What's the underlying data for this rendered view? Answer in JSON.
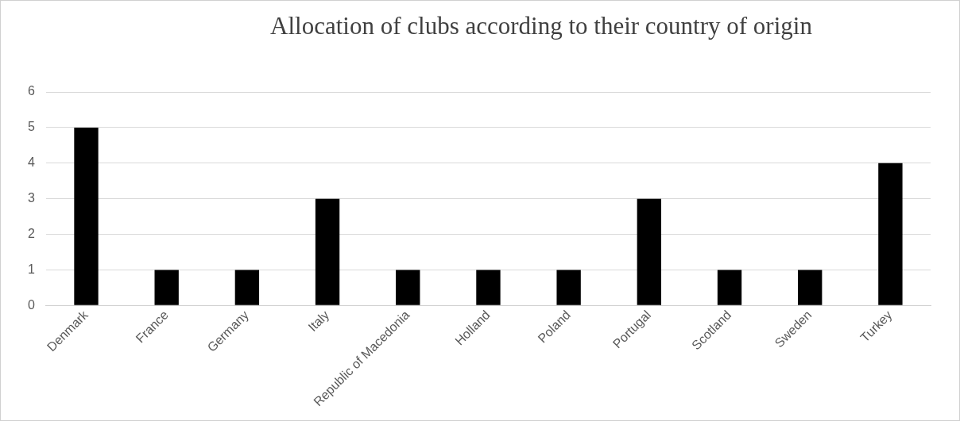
{
  "chart_data": {
    "type": "bar",
    "title": "Allocation of clubs according to their country of origin",
    "categories": [
      "Denmark",
      "France",
      "Germany",
      "Italy",
      "Republic of Macedonia",
      "Holland",
      "Poland",
      "Portugal",
      "Scotland",
      "Sweden",
      "Turkey"
    ],
    "values": [
      5,
      1,
      1,
      3,
      1,
      1,
      1,
      3,
      1,
      1,
      4
    ],
    "color": "#000000",
    "ylim": [
      0,
      6
    ],
    "yticks": [
      0,
      1,
      2,
      3,
      4,
      5,
      6
    ],
    "grid": "y",
    "legend": false
  }
}
